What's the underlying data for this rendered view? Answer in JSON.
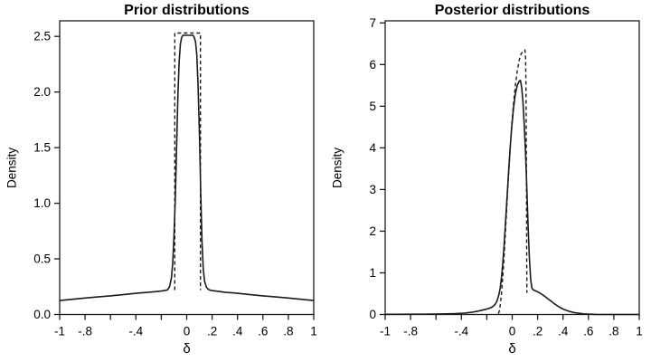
{
  "figure": {
    "background": "#ffffff",
    "line_color": "#1b1b1b",
    "text_color": "#000000",
    "grid": false,
    "legend": null
  },
  "chart_data": [
    {
      "id": "prior",
      "type": "line",
      "title": "Prior distributions",
      "xlabel": "δ",
      "ylabel": "Density",
      "xlim": [
        -1,
        1
      ],
      "ylim": [
        0,
        2.64
      ],
      "x_ticks": [
        -1,
        -0.8,
        -0.6,
        -0.4,
        -0.2,
        0,
        0.2,
        0.4,
        0.6,
        0.8,
        1
      ],
      "x_tick_labels": [
        "-1",
        "-.8",
        "",
        "-.4",
        "",
        "0",
        ".2",
        ".4",
        ".6",
        ".8",
        "1"
      ],
      "y_ticks": [
        0,
        0.5,
        1,
        1.5,
        2,
        2.5
      ],
      "y_tick_labels": [
        "0.0",
        "0.5",
        "1.0",
        "1.5",
        "2.0",
        "2.5"
      ],
      "series": [
        {
          "name": "solid",
          "style": "solid",
          "points": [
            [
              -1,
              0.125
            ],
            [
              -0.9,
              0.137
            ],
            [
              -0.8,
              0.148
            ],
            [
              -0.7,
              0.158
            ],
            [
              -0.6,
              0.168
            ],
            [
              -0.5,
              0.178
            ],
            [
              -0.4,
              0.19
            ],
            [
              -0.3,
              0.2
            ],
            [
              -0.25,
              0.205
            ],
            [
              -0.2,
              0.211
            ],
            [
              -0.17,
              0.216
            ],
            [
              -0.15,
              0.222
            ],
            [
              -0.135,
              0.25
            ],
            [
              -0.12,
              0.33
            ],
            [
              -0.11,
              0.46
            ],
            [
              -0.1,
              0.7
            ],
            [
              -0.09,
              1.05
            ],
            [
              -0.08,
              1.5
            ],
            [
              -0.07,
              1.95
            ],
            [
              -0.06,
              2.27
            ],
            [
              -0.05,
              2.43
            ],
            [
              -0.04,
              2.49
            ],
            [
              -0.03,
              2.51
            ],
            [
              0.05,
              2.51
            ],
            [
              0.06,
              2.49
            ],
            [
              0.07,
              2.45
            ],
            [
              0.08,
              2.33
            ],
            [
              0.09,
              2.05
            ],
            [
              0.1,
              1.62
            ],
            [
              0.11,
              1.1
            ],
            [
              0.12,
              0.66
            ],
            [
              0.13,
              0.41
            ],
            [
              0.14,
              0.3
            ],
            [
              0.155,
              0.245
            ],
            [
              0.17,
              0.225
            ],
            [
              0.19,
              0.216
            ],
            [
              0.25,
              0.208
            ],
            [
              0.3,
              0.2
            ],
            [
              0.4,
              0.19
            ],
            [
              0.5,
              0.178
            ],
            [
              0.6,
              0.168
            ],
            [
              0.7,
              0.158
            ],
            [
              0.8,
              0.148
            ],
            [
              0.9,
              0.137
            ],
            [
              1,
              0.125
            ]
          ]
        },
        {
          "name": "dashed",
          "style": "dashed",
          "points": [
            [
              -0.094,
              0.22
            ],
            [
              -0.094,
              2.53
            ],
            [
              0.108,
              2.53
            ],
            [
              0.108,
              0.22
            ]
          ]
        }
      ]
    },
    {
      "id": "posterior",
      "type": "line",
      "title": "Posterior distributions",
      "xlabel": "δ",
      "ylabel": "Density",
      "xlim": [
        -1,
        1
      ],
      "ylim": [
        0,
        7.05
      ],
      "x_ticks": [
        -1,
        -0.8,
        -0.6,
        -0.4,
        -0.2,
        0,
        0.2,
        0.4,
        0.6,
        0.8,
        1
      ],
      "x_tick_labels": [
        "-1",
        "-.8",
        "",
        "-.4",
        "",
        "0",
        ".2",
        ".4",
        ".6",
        ".8",
        "1"
      ],
      "y_ticks": [
        0,
        1,
        2,
        3,
        4,
        5,
        6,
        7
      ],
      "y_tick_labels": [
        "0",
        "1",
        "2",
        "3",
        "4",
        "5",
        "6",
        "7"
      ],
      "series": [
        {
          "name": "solid",
          "style": "solid",
          "points": [
            [
              -1,
              0.004
            ],
            [
              -0.7,
              0.006
            ],
            [
              -0.55,
              0.012
            ],
            [
              -0.45,
              0.02
            ],
            [
              -0.38,
              0.032
            ],
            [
              -0.32,
              0.052
            ],
            [
              -0.27,
              0.08
            ],
            [
              -0.22,
              0.115
            ],
            [
              -0.18,
              0.15
            ],
            [
              -0.155,
              0.185
            ],
            [
              -0.135,
              0.24
            ],
            [
              -0.12,
              0.32
            ],
            [
              -0.105,
              0.47
            ],
            [
              -0.095,
              0.63
            ],
            [
              -0.085,
              0.88
            ],
            [
              -0.075,
              1.2
            ],
            [
              -0.065,
              1.62
            ],
            [
              -0.055,
              2.1
            ],
            [
              -0.045,
              2.6
            ],
            [
              -0.035,
              3.1
            ],
            [
              -0.025,
              3.6
            ],
            [
              -0.015,
              4.05
            ],
            [
              -0.005,
              4.45
            ],
            [
              0.01,
              4.95
            ],
            [
              0.025,
              5.3
            ],
            [
              0.04,
              5.5
            ],
            [
              0.055,
              5.6
            ],
            [
              0.065,
              5.62
            ],
            [
              0.075,
              5.45
            ],
            [
              0.085,
              5.1
            ],
            [
              0.095,
              4.55
            ],
            [
              0.105,
              3.85
            ],
            [
              0.115,
              3.0
            ],
            [
              0.125,
              2.1
            ],
            [
              0.135,
              1.35
            ],
            [
              0.145,
              0.85
            ],
            [
              0.155,
              0.63
            ],
            [
              0.165,
              0.59
            ],
            [
              0.19,
              0.56
            ],
            [
              0.22,
              0.51
            ],
            [
              0.25,
              0.45
            ],
            [
              0.28,
              0.38
            ],
            [
              0.31,
              0.31
            ],
            [
              0.34,
              0.24
            ],
            [
              0.37,
              0.18
            ],
            [
              0.4,
              0.13
            ],
            [
              0.44,
              0.085
            ],
            [
              0.48,
              0.05
            ],
            [
              0.52,
              0.03
            ],
            [
              0.56,
              0.016
            ],
            [
              0.6,
              0.008
            ],
            [
              0.66,
              0.003
            ],
            [
              0.75,
              0.001
            ],
            [
              1,
              0.001
            ]
          ]
        },
        {
          "name": "dashed",
          "style": "dashed",
          "points": [
            [
              -0.108,
              0.02
            ],
            [
              -0.1,
              0.1
            ],
            [
              -0.092,
              0.28
            ],
            [
              -0.083,
              0.55
            ],
            [
              -0.073,
              0.95
            ],
            [
              -0.062,
              1.5
            ],
            [
              -0.051,
              2.1
            ],
            [
              -0.04,
              2.75
            ],
            [
              -0.028,
              3.4
            ],
            [
              -0.016,
              4.0
            ],
            [
              -0.004,
              4.55
            ],
            [
              0.01,
              5.05
            ],
            [
              0.025,
              5.5
            ],
            [
              0.04,
              5.85
            ],
            [
              0.055,
              6.1
            ],
            [
              0.07,
              6.25
            ],
            [
              0.085,
              6.32
            ],
            [
              0.1,
              6.35
            ],
            [
              0.105,
              6.15
            ],
            [
              0.108,
              5.5
            ],
            [
              0.11,
              4.5
            ],
            [
              0.112,
              3.5
            ],
            [
              0.113,
              2.5
            ],
            [
              0.114,
              1.5
            ],
            [
              0.115,
              0.85
            ],
            [
              0.115,
              0.52
            ]
          ]
        }
      ]
    }
  ]
}
